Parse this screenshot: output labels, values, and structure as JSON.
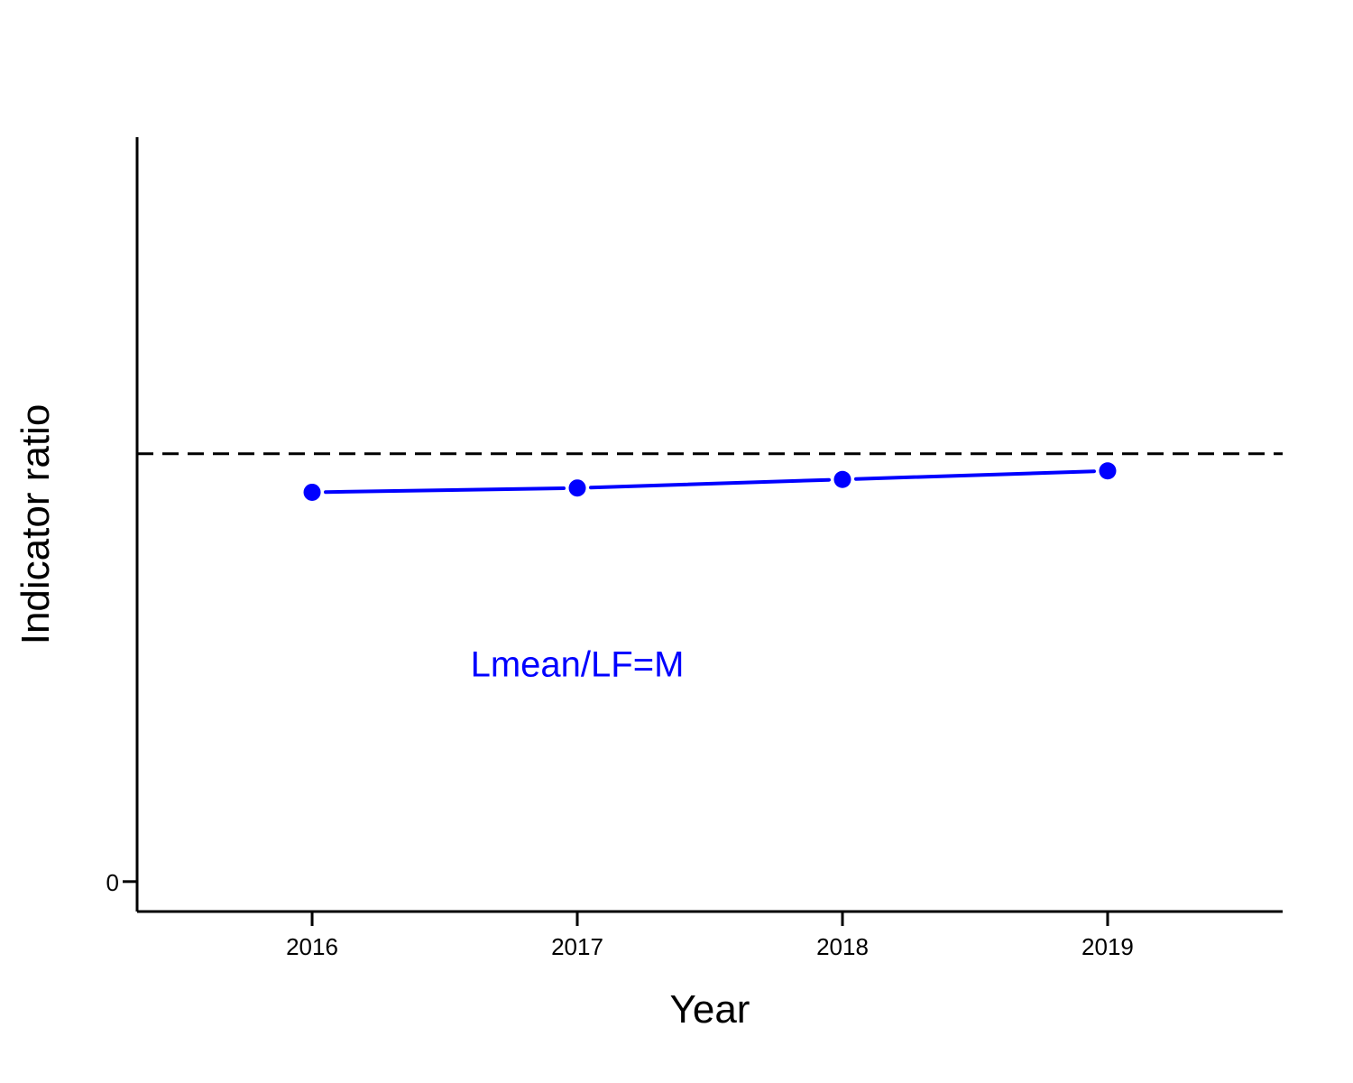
{
  "chart_data": {
    "type": "line",
    "xlabel": "Year",
    "ylabel": "Indicator ratio",
    "x": [
      2016,
      2017,
      2018,
      2019
    ],
    "series": [
      {
        "values": [
          0.91,
          0.92,
          0.94,
          0.96
        ],
        "color": "#0000ff",
        "marker": "filled-circle"
      }
    ],
    "x_ticks": [
      2016,
      2017,
      2018,
      2019
    ],
    "x_tick_labels": [
      "2016",
      "2017",
      "2018",
      "2019"
    ],
    "y_ticks": [
      0
    ],
    "y_tick_labels": [
      "0"
    ],
    "xlim": [
      2015.34,
      2019.66
    ],
    "ylim": [
      -0.07,
      1.74
    ],
    "reference_line": {
      "y": 1.0,
      "style": "dashed",
      "color": "#000000"
    },
    "annotation": {
      "text": "Lmean/LF=M",
      "color": "#0000ff",
      "x": 2017.0,
      "y": 0.48
    },
    "grid": false,
    "legend": "none"
  }
}
